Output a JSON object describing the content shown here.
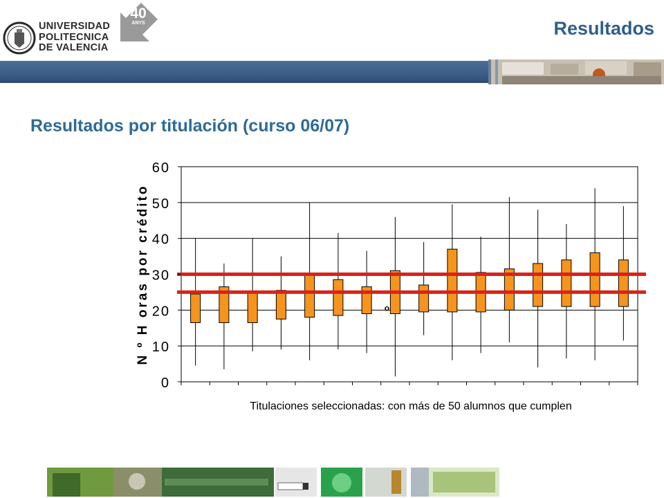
{
  "header": {
    "university_lines": [
      "UNIVERSIDAD",
      "POLITECNICA",
      "DE VALENCIA"
    ],
    "anniversary_badge": [
      "40",
      "ANYS"
    ],
    "title": "Resultados"
  },
  "subtitle": "Resultados por titulación (curso 06/07)",
  "colors": {
    "title": "#2f5f8d",
    "box_fill": "#f7941d",
    "reference_lines": "#d9231a",
    "header_bar": "#3b5d86"
  },
  "chart_data": {
    "type": "boxplot",
    "ylabel": "N º H oras por crédito",
    "xlabel": "Titulaciones seleccionadas: con más de 50 alumnos que cumplen",
    "ylim": [
      0,
      60
    ],
    "yticks": [
      "0",
      "10",
      "20",
      "30",
      "40",
      "50",
      "60"
    ],
    "grid": true,
    "reference_lines": [
      25,
      30
    ],
    "outlier_marker": "o",
    "boxes": [
      {
        "min": 4.5,
        "q1": 16.5,
        "q3": 24.5,
        "max": 40
      },
      {
        "min": 3.5,
        "q1": 16.5,
        "q3": 26.5,
        "max": 33
      },
      {
        "min": 8.5,
        "q1": 16.5,
        "q3": 25,
        "max": 40
      },
      {
        "min": 9,
        "q1": 17.5,
        "q3": 25.5,
        "max": 35
      },
      {
        "min": 6,
        "q1": 18,
        "q3": 30,
        "max": 50
      },
      {
        "min": 9,
        "q1": 18.5,
        "q3": 28.5,
        "max": 41.5
      },
      {
        "min": 8,
        "q1": 19,
        "q3": 26.5,
        "max": 36.5
      },
      {
        "min": 1.5,
        "q1": 19,
        "q3": 31,
        "max": 46
      },
      {
        "min": 13,
        "q1": 19.5,
        "q3": 27,
        "max": 39
      },
      {
        "min": 6,
        "q1": 19.5,
        "q3": 37,
        "max": 49.5
      },
      {
        "min": 8,
        "q1": 19.5,
        "q3": 30.5,
        "max": 40.5
      },
      {
        "min": 11,
        "q1": 20,
        "q3": 31.5,
        "max": 51.5
      },
      {
        "min": 4,
        "q1": 21,
        "q3": 33,
        "max": 48
      },
      {
        "min": 6.5,
        "q1": 21,
        "q3": 34,
        "max": 44
      },
      {
        "min": 6,
        "q1": 21,
        "q3": 36,
        "max": 54
      },
      {
        "min": 11.5,
        "q1": 21,
        "q3": 34,
        "max": 49
      }
    ],
    "outliers": [
      {
        "box": 7,
        "y": 20.5
      }
    ]
  }
}
